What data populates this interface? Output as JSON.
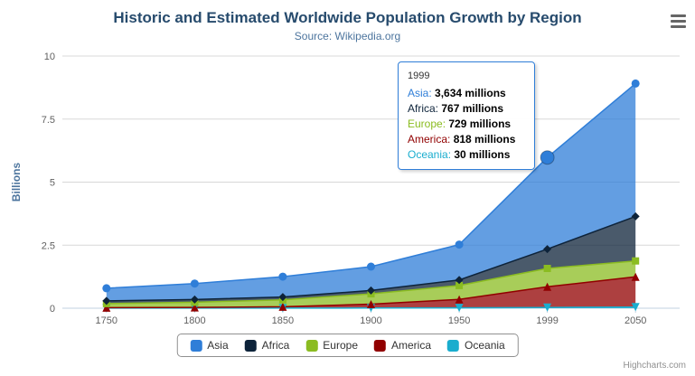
{
  "header": {
    "title": "Historic and Estimated Worldwide Population Growth by Region",
    "subtitle": "Source: Wikipedia.org"
  },
  "export_menu": {
    "icon": "hamburger-icon"
  },
  "chart_data": {
    "type": "area",
    "stacking": "normal",
    "title": "Historic and Estimated Worldwide Population Growth by Region",
    "subtitle": "Source: Wikipedia.org",
    "categories": [
      "1750",
      "1800",
      "1850",
      "1900",
      "1950",
      "1999",
      "2050"
    ],
    "xlabel": "",
    "ylabel": "Billions",
    "ylim": [
      0,
      10
    ],
    "yticks": [
      0,
      2.5,
      5,
      7.5,
      10
    ],
    "unit": "millions",
    "grid": true,
    "legend_position": "bottom",
    "series": [
      {
        "name": "Asia",
        "color": "#2f7ed8",
        "marker": "circle",
        "values": [
          502,
          635,
          809,
          947,
          1402,
          3634,
          5268
        ]
      },
      {
        "name": "Africa",
        "color": "#0d233a",
        "marker": "diamond",
        "values": [
          106,
          107,
          111,
          133,
          221,
          767,
          1766
        ]
      },
      {
        "name": "Europe",
        "color": "#8bbc21",
        "marker": "square",
        "values": [
          163,
          203,
          276,
          408,
          547,
          729,
          628
        ]
      },
      {
        "name": "America",
        "color": "#910000",
        "marker": "triangle",
        "values": [
          18,
          31,
          54,
          156,
          339,
          818,
          1201
        ]
      },
      {
        "name": "Oceania",
        "color": "#1aadce",
        "marker": "triangle-down",
        "values": [
          2,
          2,
          2,
          6,
          13,
          30,
          46
        ]
      }
    ],
    "stack_order_bottom_to_top": [
      "Oceania",
      "America",
      "Europe",
      "Africa",
      "Asia"
    ],
    "hover": {
      "series": "Asia",
      "category_index": 5
    }
  },
  "tooltip": {
    "header": "1999",
    "rows": [
      {
        "name": "Asia",
        "value": "3,634 millions",
        "color": "#2f7ed8"
      },
      {
        "name": "Africa",
        "value": "767 millions",
        "color": "#0d233a"
      },
      {
        "name": "Europe",
        "value": "729 millions",
        "color": "#8bbc21"
      },
      {
        "name": "America",
        "value": "818 millions",
        "color": "#910000"
      },
      {
        "name": "Oceania",
        "value": "30 millions",
        "color": "#1aadce"
      }
    ]
  },
  "credits": "Highcharts.com"
}
